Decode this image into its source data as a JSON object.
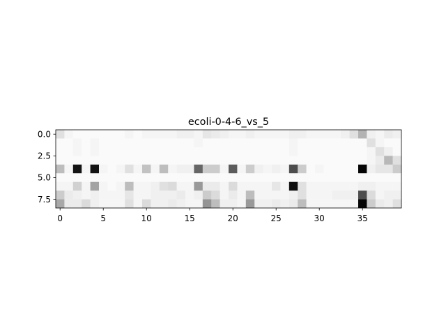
{
  "chart_data": {
    "type": "heatmap",
    "title": "ecoli-0-4-6_vs_5",
    "xlabel": "",
    "ylabel": "",
    "colormap": "gray_r",
    "xlim": [
      -0.5,
      39.5
    ],
    "ylim": [
      8.5,
      -0.5
    ],
    "x_ticks": [
      0,
      5,
      10,
      15,
      20,
      25,
      30,
      35
    ],
    "x_tick_labels": [
      "0",
      "5",
      "10",
      "15",
      "20",
      "25",
      "30",
      "35"
    ],
    "y_ticks": [
      0.0,
      2.5,
      5.0,
      7.5
    ],
    "y_tick_labels": [
      "0.0",
      "2.5",
      "5.0",
      "7.5"
    ],
    "n_rows": 9,
    "n_cols": 40,
    "value_range": [
      0,
      1
    ],
    "matrix": [
      [
        0.12,
        0.04,
        0.02,
        0.02,
        0.02,
        0.02,
        0.02,
        0.02,
        0.04,
        0.02,
        0.04,
        0.04,
        0.04,
        0.04,
        0.06,
        0.06,
        0.04,
        0.1,
        0.08,
        0.06,
        0.04,
        0.04,
        0.06,
        0.04,
        0.04,
        0.04,
        0.04,
        0.06,
        0.06,
        0.04,
        0.04,
        0.04,
        0.04,
        0.06,
        0.12,
        0.3,
        0.06,
        0.04,
        0.08,
        0.06
      ],
      [
        0.02,
        0.02,
        0.04,
        0.02,
        0.04,
        0.02,
        0.02,
        0.02,
        0.02,
        0.02,
        0.02,
        0.02,
        0.02,
        0.02,
        0.02,
        0.02,
        0.04,
        0.02,
        0.02,
        0.02,
        0.02,
        0.02,
        0.02,
        0.02,
        0.02,
        0.02,
        0.02,
        0.04,
        0.02,
        0.02,
        0.02,
        0.02,
        0.02,
        0.02,
        0.02,
        0.02,
        0.12,
        0.04,
        0.02,
        0.02
      ],
      [
        0.02,
        0.02,
        0.04,
        0.02,
        0.04,
        0.02,
        0.02,
        0.02,
        0.02,
        0.02,
        0.02,
        0.02,
        0.02,
        0.02,
        0.02,
        0.02,
        0.02,
        0.02,
        0.02,
        0.02,
        0.02,
        0.02,
        0.02,
        0.02,
        0.02,
        0.02,
        0.02,
        0.04,
        0.02,
        0.02,
        0.02,
        0.02,
        0.02,
        0.02,
        0.02,
        0.02,
        0.04,
        0.12,
        0.06,
        0.02
      ],
      [
        0.02,
        0.02,
        0.02,
        0.02,
        0.02,
        0.02,
        0.02,
        0.02,
        0.02,
        0.02,
        0.02,
        0.02,
        0.02,
        0.02,
        0.02,
        0.02,
        0.02,
        0.02,
        0.02,
        0.02,
        0.02,
        0.02,
        0.02,
        0.02,
        0.02,
        0.02,
        0.02,
        0.02,
        0.02,
        0.02,
        0.02,
        0.02,
        0.02,
        0.02,
        0.02,
        0.02,
        0.04,
        0.08,
        0.28,
        0.12
      ],
      [
        0.26,
        0.04,
        0.92,
        0.04,
        0.92,
        0.04,
        0.02,
        0.04,
        0.12,
        0.04,
        0.24,
        0.04,
        0.26,
        0.04,
        0.06,
        0.06,
        0.6,
        0.2,
        0.2,
        0.04,
        0.64,
        0.04,
        0.2,
        0.06,
        0.04,
        0.06,
        0.04,
        0.7,
        0.2,
        0.02,
        0.04,
        0.02,
        0.02,
        0.02,
        0.02,
        0.98,
        0.06,
        0.1,
        0.1,
        0.2
      ],
      [
        0.02,
        0.02,
        0.02,
        0.02,
        0.02,
        0.02,
        0.02,
        0.02,
        0.02,
        0.02,
        0.02,
        0.02,
        0.02,
        0.02,
        0.02,
        0.02,
        0.02,
        0.02,
        0.02,
        0.02,
        0.02,
        0.02,
        0.02,
        0.02,
        0.02,
        0.02,
        0.02,
        0.02,
        0.02,
        0.02,
        0.02,
        0.02,
        0.02,
        0.02,
        0.02,
        0.02,
        0.02,
        0.02,
        0.02,
        0.02
      ],
      [
        0.04,
        0.04,
        0.18,
        0.04,
        0.36,
        0.04,
        0.02,
        0.04,
        0.26,
        0.04,
        0.04,
        0.06,
        0.12,
        0.14,
        0.04,
        0.04,
        0.4,
        0.08,
        0.08,
        0.04,
        0.14,
        0.04,
        0.04,
        0.04,
        0.04,
        0.1,
        0.04,
        0.95,
        0.12,
        0.04,
        0.04,
        0.04,
        0.04,
        0.04,
        0.04,
        0.06,
        0.06,
        0.04,
        0.04,
        0.04
      ],
      [
        0.2,
        0.08,
        0.06,
        0.04,
        0.06,
        0.04,
        0.04,
        0.04,
        0.1,
        0.04,
        0.04,
        0.06,
        0.06,
        0.06,
        0.08,
        0.04,
        0.06,
        0.2,
        0.14,
        0.04,
        0.08,
        0.04,
        0.26,
        0.04,
        0.04,
        0.04,
        0.04,
        0.06,
        0.12,
        0.04,
        0.04,
        0.04,
        0.06,
        0.06,
        0.06,
        0.7,
        0.14,
        0.04,
        0.06,
        0.06
      ],
      [
        0.34,
        0.08,
        0.08,
        0.14,
        0.06,
        0.04,
        0.04,
        0.04,
        0.12,
        0.04,
        0.14,
        0.06,
        0.06,
        0.08,
        0.06,
        0.04,
        0.04,
        0.42,
        0.26,
        0.06,
        0.06,
        0.04,
        0.4,
        0.06,
        0.06,
        0.08,
        0.06,
        0.08,
        0.26,
        0.04,
        0.04,
        0.04,
        0.04,
        0.04,
        0.04,
        0.98,
        0.2,
        0.08,
        0.06,
        0.12
      ]
    ]
  }
}
